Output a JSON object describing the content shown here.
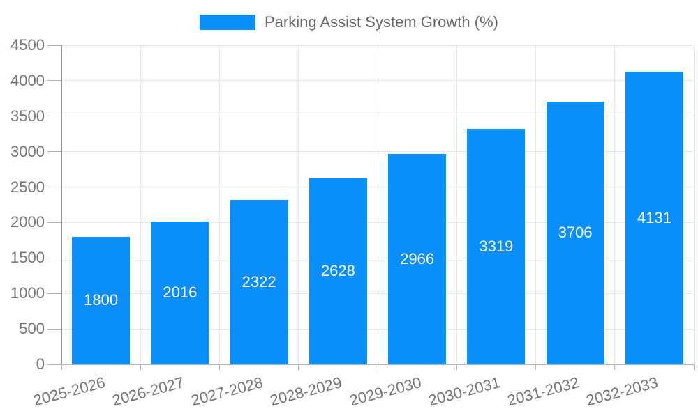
{
  "chart_data": {
    "type": "bar",
    "title": "Parking Assist System Growth (%)",
    "legend_label": "Parking Assist System Growth (%)",
    "legend_position": "top",
    "categories": [
      "2025-2026",
      "2026-2027",
      "2027-2028",
      "2028-2029",
      "2029-2030",
      "2030-2031",
      "2031-2032",
      "2032-2033"
    ],
    "values": [
      1800,
      2016,
      2322,
      2628,
      2966,
      3319,
      3706,
      4131
    ],
    "value_labels": [
      "1800",
      "2016",
      "2322",
      "2628",
      "2966",
      "3319",
      "3706",
      "4131"
    ],
    "xlabel": "",
    "ylabel": "",
    "ylim": [
      0,
      4500
    ],
    "ytick_step": 500,
    "ytick_labels": [
      "0",
      "500",
      "1000",
      "1500",
      "2000",
      "2500",
      "3000",
      "3500",
      "4000",
      "4500"
    ],
    "grid": true,
    "colors": {
      "bar": "#0a8ef9",
      "bar_value_text": "#ffffff",
      "grid_line": "#e6e6e6",
      "axis_line": "#949494",
      "baseline": "#b3b3b3",
      "tick_mark": "#b3b3b3",
      "tick_text": "#757575",
      "legend_text": "#666666",
      "background": "#ffffff"
    }
  }
}
